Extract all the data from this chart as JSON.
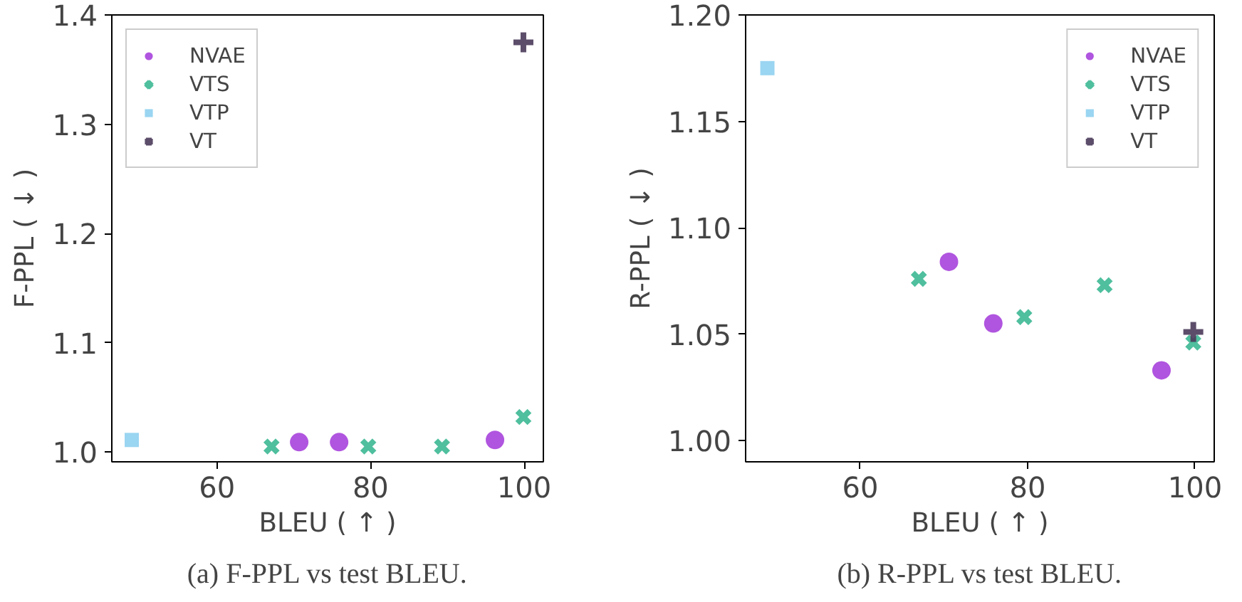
{
  "chart_data": [
    {
      "type": "scatter",
      "xlabel": "BLEU ( ↑ )",
      "ylabel": "F-PPL ( ↓ )",
      "xlim": [
        46.3,
        102.5
      ],
      "ylim": [
        0.991,
        1.4
      ],
      "xticks": [
        60,
        80,
        100
      ],
      "yticks": [
        {
          "value": 1.0,
          "label": "1.0"
        },
        1.1,
        1.2,
        1.3,
        1.4
      ],
      "grid": false,
      "legend": "top left",
      "series": [
        {
          "name": "NVAE",
          "color": "#a742db",
          "marker": "circle",
          "x": [
            70.7,
            75.9,
            96.2
          ],
          "values": [
            1.009,
            1.009,
            1.011
          ]
        },
        {
          "name": "VTS",
          "color": "#3cb894",
          "marker": "cross",
          "x": [
            67.1,
            79.7,
            89.3,
            99.9
          ],
          "values": [
            1.005,
            1.005,
            1.005,
            1.032
          ]
        },
        {
          "name": "VTP",
          "color": "#8fd0f0",
          "marker": "square",
          "x": [
            48.9
          ],
          "values": [
            1.011
          ]
        },
        {
          "name": "VT",
          "color": "#4a3a5a",
          "marker": "plus",
          "x": [
            99.9
          ],
          "values": [
            1.375
          ]
        }
      ],
      "annotations": [
        "(a) F-PPL vs test BLEU."
      ]
    },
    {
      "type": "scatter",
      "xlabel": "BLEU ( ↑ )",
      "ylabel": "R-PPL ( ↓ )",
      "xlim": [
        46.3,
        102.3
      ],
      "ylim": [
        0.99,
        1.2
      ],
      "xticks": [
        60,
        80,
        100
      ],
      "yticks": [
        {
          "value": 1.0,
          "label": "1.00"
        },
        {
          "value": 1.05,
          "label": "1.05"
        },
        {
          "value": 1.1,
          "label": "1.10"
        },
        {
          "value": 1.15,
          "label": "1.15"
        },
        {
          "value": 1.2,
          "label": "1.20"
        }
      ],
      "grid": false,
      "legend": "top right",
      "series": [
        {
          "name": "NVAE",
          "color": "#a742db",
          "marker": "circle",
          "x": [
            70.6,
            75.9,
            96.0
          ],
          "values": [
            1.084,
            1.055,
            1.033
          ]
        },
        {
          "name": "VTS",
          "color": "#3cb894",
          "marker": "cross",
          "x": [
            67.0,
            79.6,
            89.2,
            99.8
          ],
          "values": [
            1.076,
            1.058,
            1.073,
            1.046
          ]
        },
        {
          "name": "VTP",
          "color": "#8fd0f0",
          "marker": "square",
          "x": [
            48.9
          ],
          "values": [
            1.175
          ]
        },
        {
          "name": "VT",
          "color": "#4a3a5a",
          "marker": "plus",
          "x": [
            99.8
          ],
          "values": [
            1.051
          ]
        }
      ],
      "annotations": [
        "(b) R-PPL vs test BLEU."
      ]
    }
  ]
}
